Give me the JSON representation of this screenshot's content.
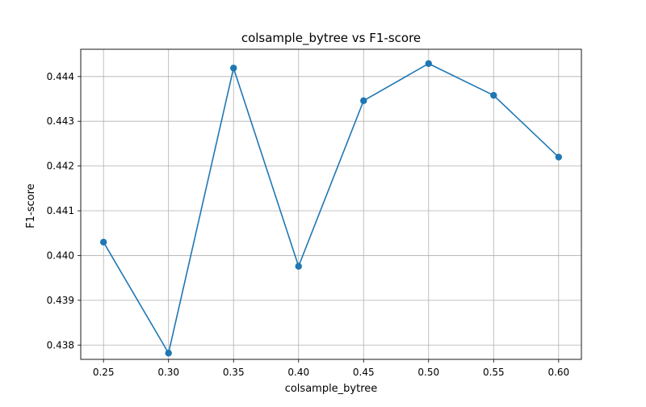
{
  "chart_data": {
    "type": "line",
    "title": "colsample_bytree vs F1-score",
    "xlabel": "colsample_bytree",
    "ylabel": "F1-score",
    "x": [
      0.25,
      0.3,
      0.35,
      0.4,
      0.45,
      0.5,
      0.55,
      0.6
    ],
    "series": [
      {
        "values": [
          0.4403,
          0.43782,
          0.44419,
          0.43976,
          0.44346,
          0.44429,
          0.44358,
          0.4422
        ]
      }
    ],
    "xticks": [
      "0.25",
      "0.30",
      "0.35",
      "0.40",
      "0.45",
      "0.50",
      "0.55",
      "0.60"
    ],
    "yticks": [
      "0.438",
      "0.439",
      "0.440",
      "0.441",
      "0.442",
      "0.443",
      "0.444"
    ],
    "xlim": [
      0.2325,
      0.6175
    ],
    "ylim": [
      0.43768,
      0.44461
    ],
    "grid": true,
    "marker": "circle",
    "colors": {
      "line": "#1f77b4",
      "grid": "#b0b0b0",
      "axes": "#000000"
    }
  }
}
